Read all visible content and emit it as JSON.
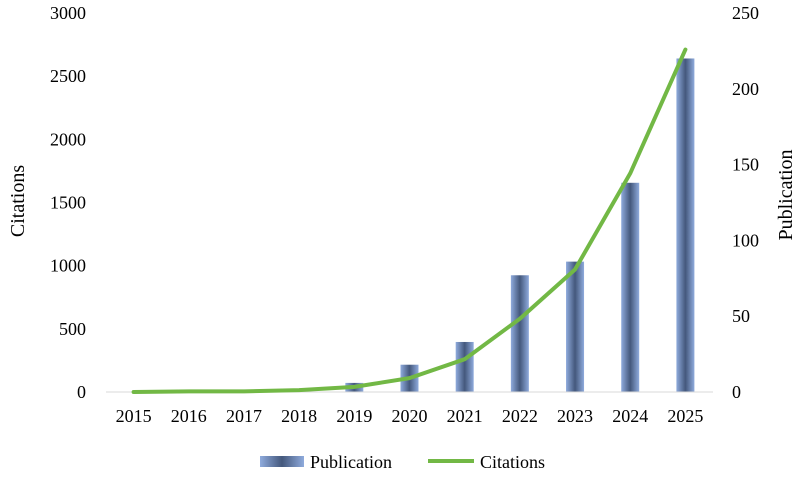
{
  "chart_data": {
    "type": "bar",
    "categories": [
      "2015",
      "2016",
      "2017",
      "2018",
      "2019",
      "2020",
      "2021",
      "2022",
      "2023",
      "2024",
      "2025"
    ],
    "series": [
      {
        "name": "Publication",
        "type": "bar",
        "axis": "right",
        "values": [
          0,
          0,
          0,
          0,
          6,
          18,
          33,
          77,
          86,
          138,
          220
        ],
        "color": "#7f97c9"
      },
      {
        "name": "Citations",
        "type": "line",
        "axis": "left",
        "values": [
          0,
          5,
          5,
          15,
          40,
          110,
          260,
          580,
          970,
          1730,
          2710
        ],
        "color": "#72b845"
      }
    ],
    "left_axis": {
      "label": "Citations",
      "ylim": [
        0,
        3000
      ],
      "ticks": [
        "0",
        "500",
        "1000",
        "1500",
        "2000",
        "2500",
        "3000"
      ]
    },
    "right_axis": {
      "label": "Publication",
      "ylim": [
        0,
        250
      ],
      "ticks": [
        "0",
        "50",
        "100",
        "150",
        "200",
        "250"
      ]
    },
    "grid": false,
    "legend_position": "bottom"
  }
}
